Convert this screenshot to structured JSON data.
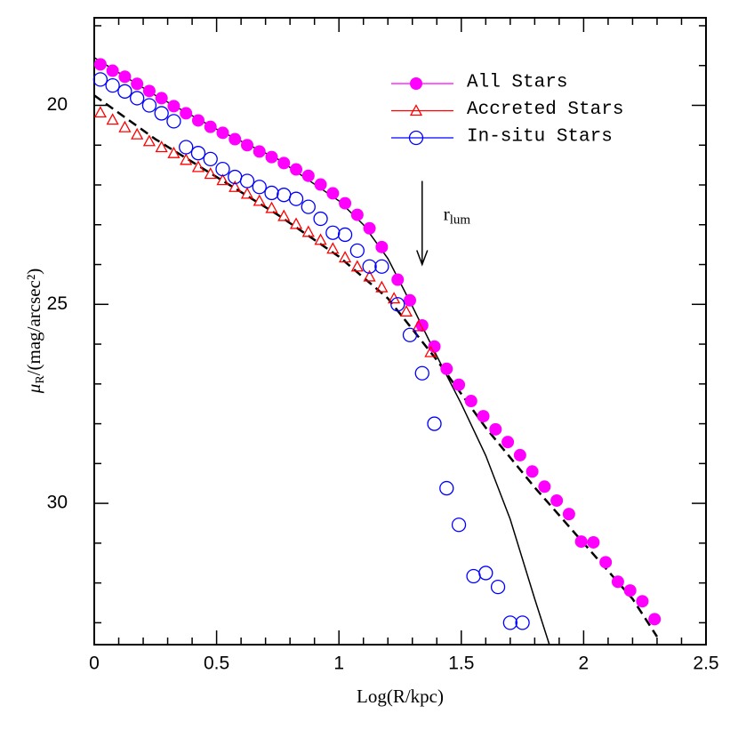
{
  "chart_data": {
    "type": "scatter",
    "xlabel": "Log(R/kpc)",
    "ylabel": {
      "symbol": "μ",
      "sub": "R",
      "rest": "/(mag/arcsec²)"
    },
    "xlim": [
      0,
      2.5
    ],
    "xticks": [
      0,
      0.5,
      1,
      1.5,
      2,
      2.5
    ],
    "xminorticks": [
      0.1,
      0.2,
      0.3,
      0.4,
      0.6,
      0.7,
      0.8,
      0.9,
      1.1,
      1.2,
      1.3,
      1.4,
      1.6,
      1.7,
      1.8,
      1.9,
      2.1,
      2.2,
      2.3,
      2.4
    ],
    "ylim": [
      17.8,
      33.55
    ],
    "y_inverted": true,
    "yticks": [
      20,
      25,
      30
    ],
    "yminorticks": [
      18,
      19,
      21,
      22,
      23,
      24,
      26,
      27,
      28,
      29,
      31,
      32,
      33
    ],
    "series": [
      {
        "name": "All Stars",
        "color": "#ff00ff",
        "marker": "filled-circle",
        "x": [
          0.025,
          0.075,
          0.125,
          0.175,
          0.225,
          0.275,
          0.325,
          0.375,
          0.425,
          0.475,
          0.525,
          0.575,
          0.625,
          0.675,
          0.725,
          0.775,
          0.825,
          0.875,
          0.925,
          0.975,
          1.025,
          1.075,
          1.125,
          1.175,
          1.24,
          1.29,
          1.34,
          1.39,
          1.44,
          1.49,
          1.54,
          1.59,
          1.64,
          1.69,
          1.74,
          1.79,
          1.84,
          1.89,
          1.94,
          1.99,
          2.04,
          2.09,
          2.14,
          2.19,
          2.24,
          2.29
        ],
        "values": [
          18.97,
          19.13,
          19.28,
          19.46,
          19.64,
          19.82,
          20.02,
          20.2,
          20.38,
          20.54,
          20.69,
          20.85,
          21.0,
          21.16,
          21.3,
          21.45,
          21.61,
          21.77,
          21.99,
          22.21,
          22.46,
          22.75,
          23.09,
          23.56,
          24.38,
          24.9,
          25.53,
          26.06,
          26.62,
          27.02,
          27.43,
          27.81,
          28.14,
          28.46,
          28.79,
          29.2,
          29.58,
          29.93,
          30.27,
          30.96,
          30.98,
          31.48,
          31.97,
          32.19,
          32.46,
          32.91
        ]
      },
      {
        "name": "Accreted Stars",
        "color": "#ff0000",
        "marker": "open-triangle",
        "x": [
          0.025,
          0.075,
          0.125,
          0.175,
          0.225,
          0.275,
          0.325,
          0.375,
          0.425,
          0.475,
          0.525,
          0.575,
          0.625,
          0.675,
          0.725,
          0.775,
          0.825,
          0.875,
          0.925,
          0.975,
          1.025,
          1.075,
          1.125,
          1.175,
          1.225,
          1.275,
          1.325,
          1.375
        ],
        "values": [
          20.18,
          20.36,
          20.55,
          20.73,
          20.9,
          21.05,
          21.2,
          21.37,
          21.55,
          21.72,
          21.88,
          22.05,
          22.22,
          22.4,
          22.58,
          22.78,
          22.98,
          23.18,
          23.38,
          23.6,
          23.82,
          24.05,
          24.3,
          24.57,
          24.85,
          25.18,
          25.55,
          26.2
        ]
      },
      {
        "name": "In-situ Stars",
        "color": "#0000ff",
        "marker": "open-circle",
        "x": [
          0.025,
          0.075,
          0.125,
          0.175,
          0.225,
          0.275,
          0.325,
          0.375,
          0.425,
          0.475,
          0.525,
          0.575,
          0.625,
          0.675,
          0.725,
          0.775,
          0.825,
          0.875,
          0.925,
          0.975,
          1.025,
          1.075,
          1.125,
          1.175,
          1.24,
          1.29,
          1.34,
          1.39,
          1.44,
          1.49,
          1.55,
          1.6,
          1.65,
          1.7,
          1.75
        ],
        "values": [
          19.35,
          19.5,
          19.65,
          19.82,
          20.0,
          20.2,
          20.4,
          21.05,
          21.2,
          21.35,
          21.6,
          21.8,
          21.9,
          22.05,
          22.2,
          22.25,
          22.35,
          22.55,
          22.85,
          23.2,
          23.25,
          23.65,
          24.05,
          24.05,
          25.0,
          25.77,
          26.73,
          28.0,
          29.62,
          30.54,
          31.83,
          31.75,
          32.1,
          33.0,
          33.0
        ]
      }
    ],
    "lines": [
      {
        "color": "#000000",
        "style": "solid",
        "x": [
          0,
          0.25,
          0.5,
          0.75,
          1.0,
          1.1,
          1.2,
          1.3,
          1.4,
          1.5,
          1.6,
          1.7,
          1.8,
          1.86
        ],
        "values": [
          18.8,
          19.75,
          20.6,
          21.35,
          22.4,
          23.0,
          23.85,
          25.05,
          26.3,
          27.5,
          28.8,
          30.4,
          32.4,
          33.55
        ]
      },
      {
        "color": "#000000",
        "style": "dashed",
        "x": [
          0,
          0.25,
          0.5,
          0.75,
          1.0,
          1.2,
          1.4,
          1.6,
          1.8,
          2.0,
          2.2,
          2.3
        ],
        "values": [
          19.75,
          20.85,
          21.8,
          22.75,
          23.8,
          24.85,
          26.4,
          28.1,
          29.6,
          31.0,
          32.4,
          33.35
        ]
      }
    ],
    "arrow": {
      "x": 1.34,
      "from": 21.9,
      "to": 24.0,
      "label": "r",
      "sub": "lum"
    }
  }
}
